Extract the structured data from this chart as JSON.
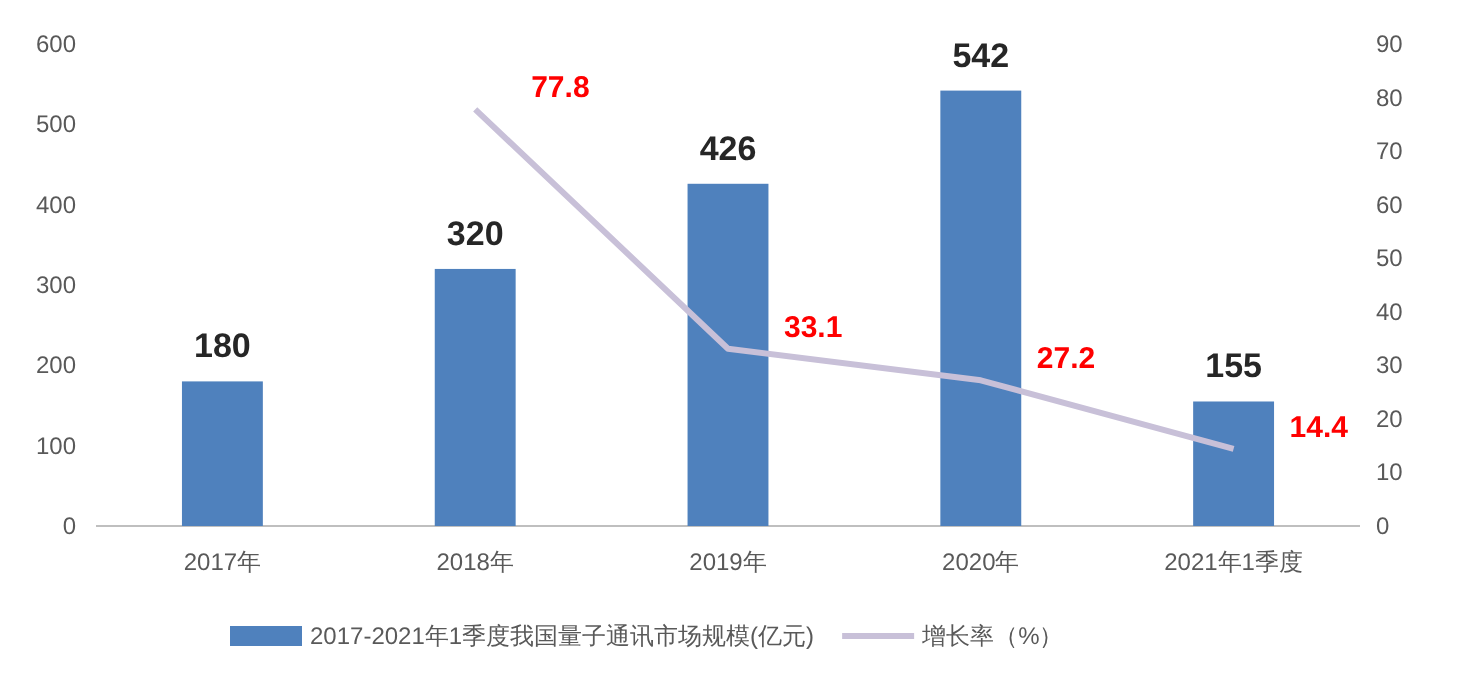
{
  "chart_data": {
    "type": "bar",
    "categories": [
      "2017年",
      "2018年",
      "2019年",
      "2020年",
      "2021年1季度"
    ],
    "series": [
      {
        "name": "2017-2021年1季度我国量子通讯市场规模(亿元)",
        "color": "#4f81bd",
        "values": [
          180,
          320,
          426,
          542,
          155
        ]
      },
      {
        "name": "增长率（%）",
        "type": "line",
        "axis": "y2",
        "color": "#c8c0d8",
        "values": [
          null,
          77.8,
          33.1,
          27.2,
          14.4
        ]
      }
    ],
    "ylim": [
      0,
      600
    ],
    "yticks": [
      0,
      100,
      200,
      300,
      400,
      500,
      600
    ],
    "y2lim": [
      0,
      90
    ],
    "y2ticks": [
      0,
      10,
      20,
      30,
      40,
      50,
      60,
      70,
      80,
      90
    ],
    "data_labels": true,
    "grid": false,
    "legend": "bottom",
    "marker": "none",
    "line_style": "solid"
  }
}
